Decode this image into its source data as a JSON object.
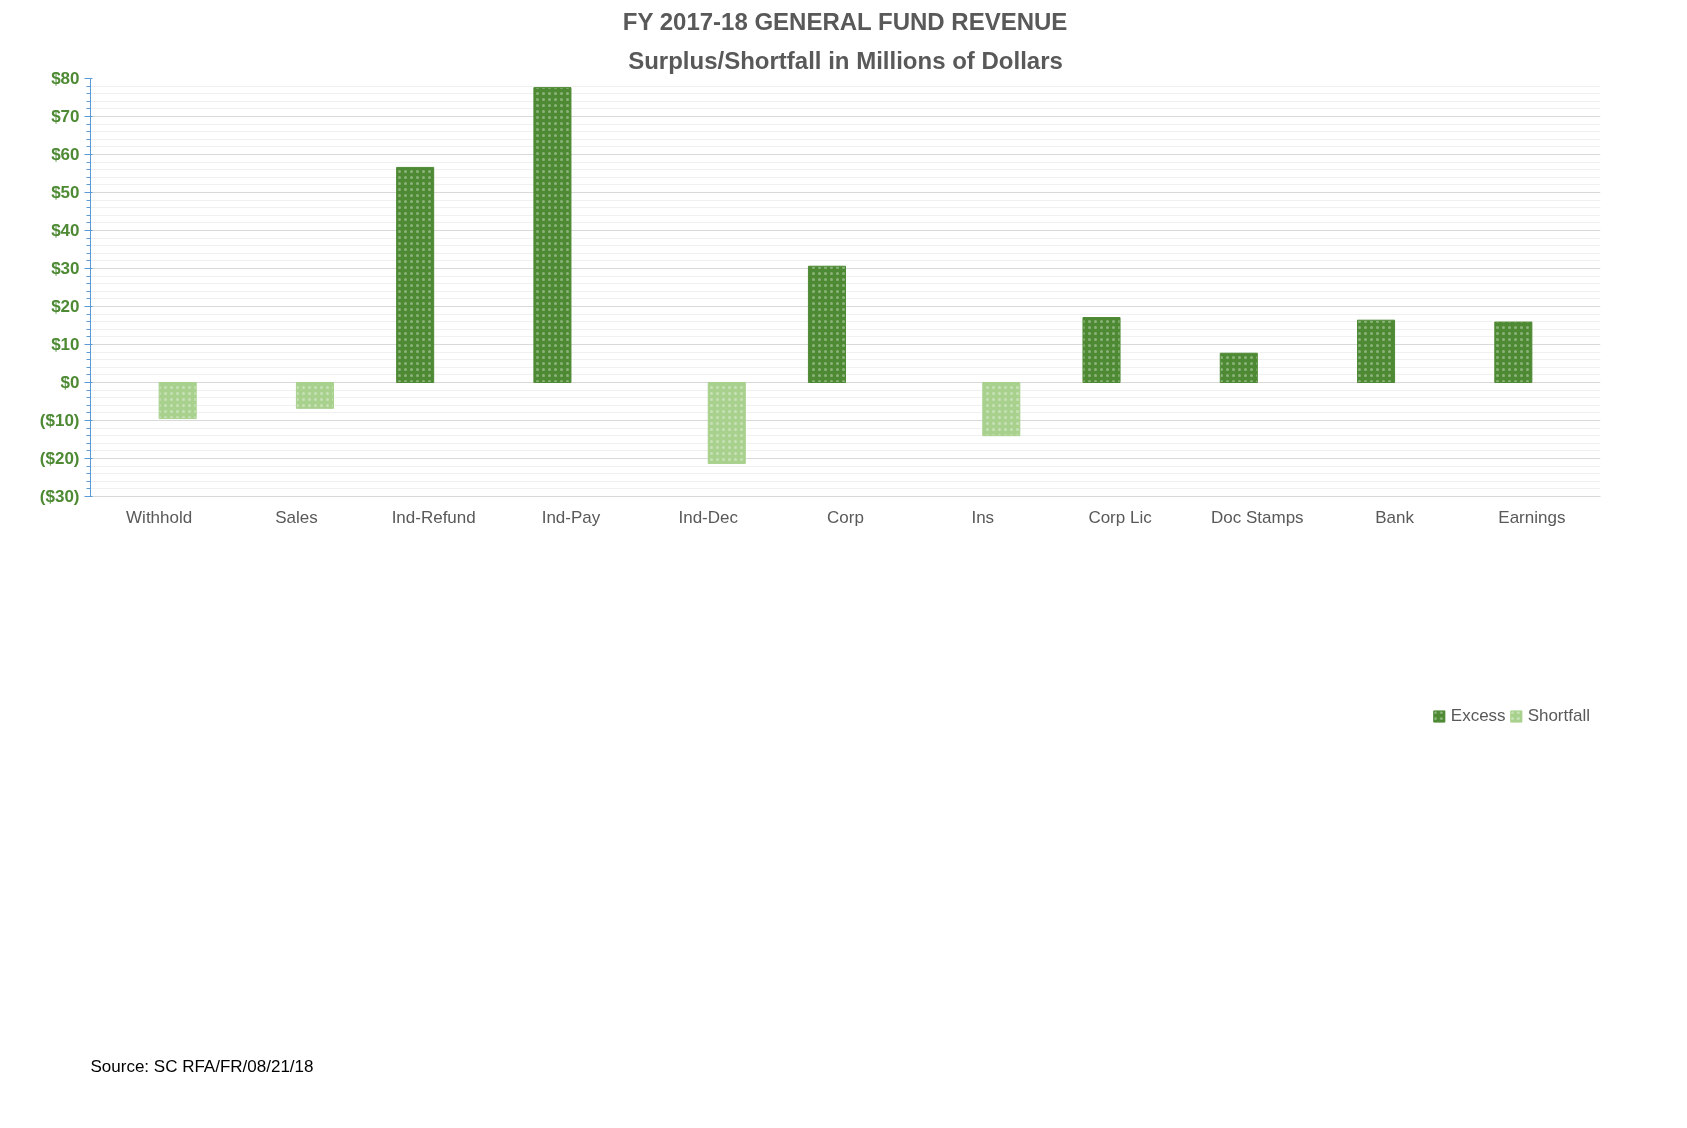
{
  "chart_data": {
    "type": "bar",
    "title": "FY 2017-18 GENERAL FUND REVENUE",
    "subtitle": "Surplus/Shortfall in Millions of Dollars",
    "categories": [
      "Withhold",
      "Sales",
      "Ind-Refund",
      "Ind-Pay",
      "Ind-Dec",
      "Corp",
      "Ins",
      "Corp Lic",
      "Doc Stamps",
      "Bank",
      "Earnings"
    ],
    "series": [
      {
        "name": "Excess",
        "color": "#4e8a34",
        "values": [
          null,
          null,
          56.6,
          77.6,
          null,
          30.6,
          null,
          17.1,
          7.7,
          16.4,
          15.9
        ]
      },
      {
        "name": "Shortfall",
        "color": "#a9d18e",
        "values": [
          -9.5,
          -6.8,
          null,
          null,
          -21.3,
          null,
          -14.0,
          null,
          null,
          null,
          null
        ]
      }
    ],
    "ylim": [
      -30,
      80
    ],
    "yticks": [
      {
        "value": -30,
        "label": "($30)"
      },
      {
        "value": -20,
        "label": "($20)"
      },
      {
        "value": -10,
        "label": "($10)"
      },
      {
        "value": 0,
        "label": "$0"
      },
      {
        "value": 10,
        "label": "$10"
      },
      {
        "value": 20,
        "label": "$20"
      },
      {
        "value": 30,
        "label": "$30"
      },
      {
        "value": 40,
        "label": "$40"
      },
      {
        "value": 50,
        "label": "$50"
      },
      {
        "value": 60,
        "label": "$60"
      },
      {
        "value": 70,
        "label": "$70"
      },
      {
        "value": 80,
        "label": "$80"
      }
    ],
    "grid": "y",
    "legend": "bottom",
    "annotations": [
      "Source:  SC RFA/FR/08/21/18"
    ]
  }
}
